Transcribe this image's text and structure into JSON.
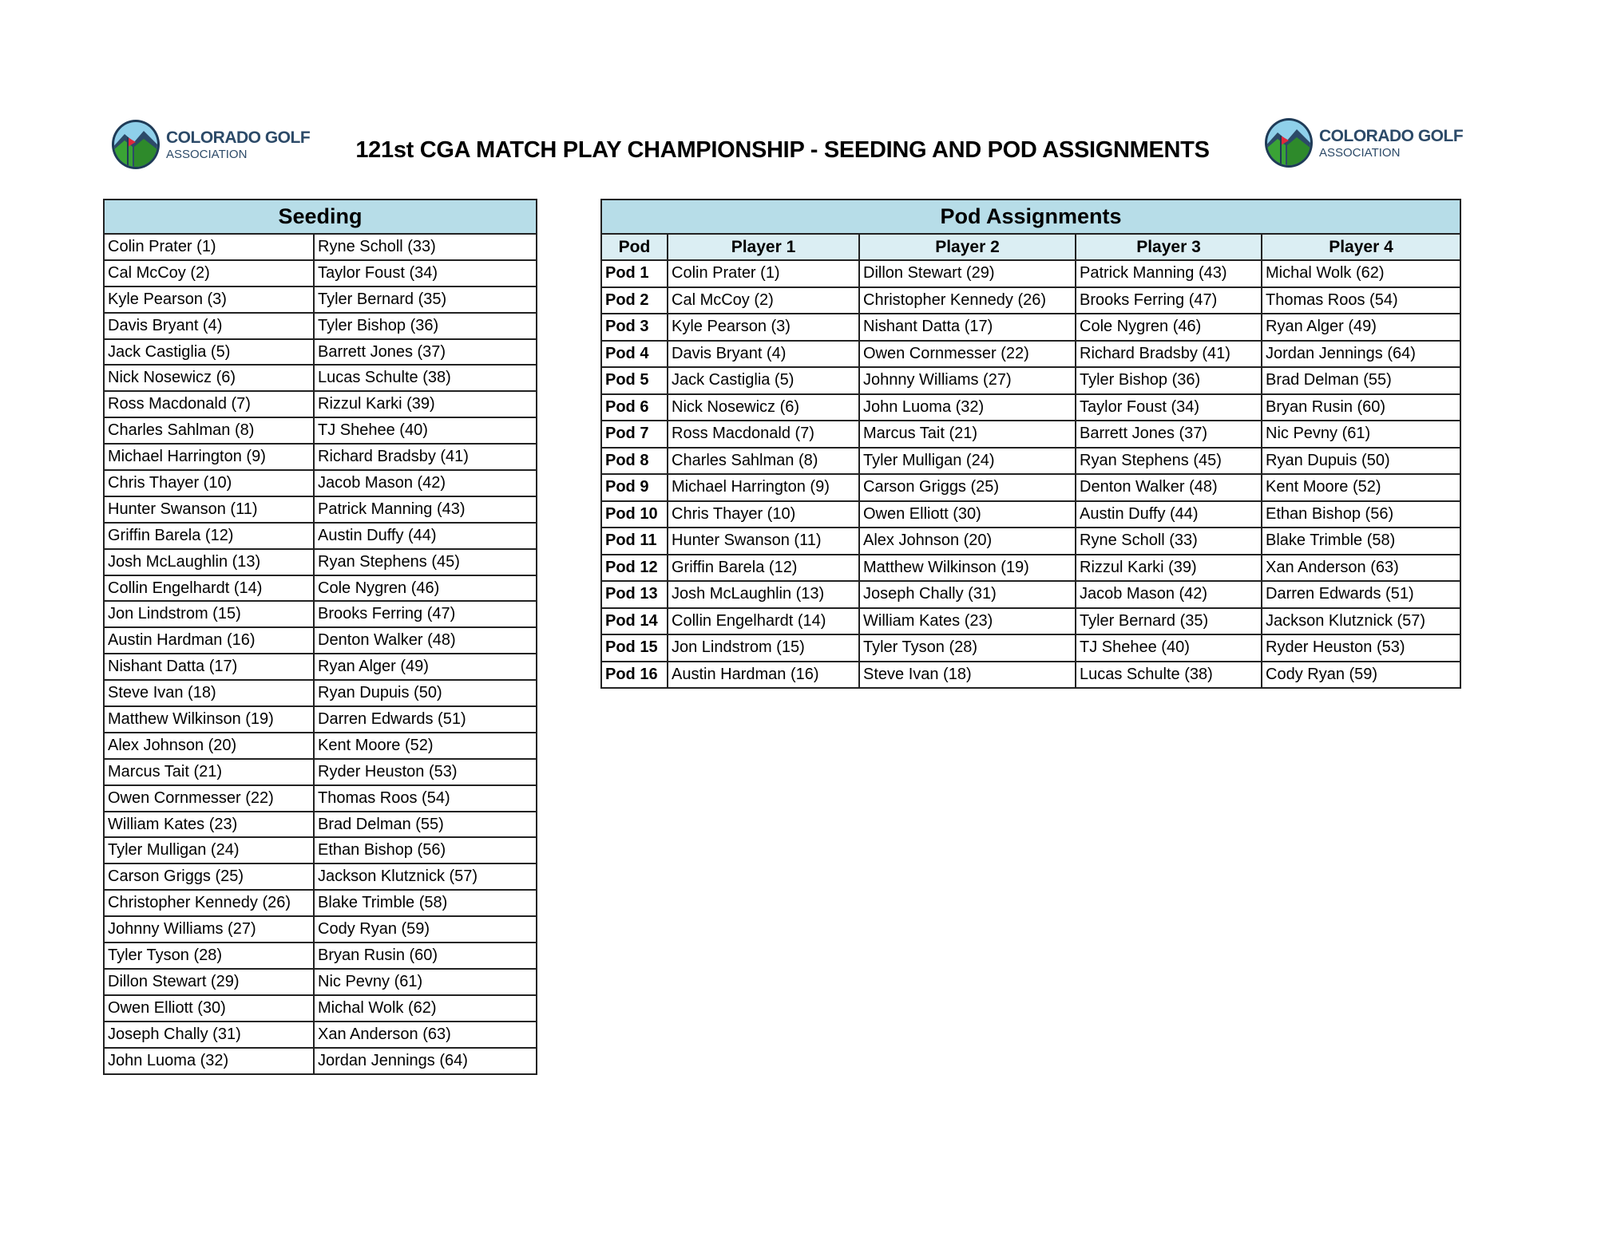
{
  "header": {
    "title": "121st CGA MATCH PLAY CHAMPIONSHIP - SEEDING AND POD ASSIGNMENTS",
    "logo": {
      "line1": "COLORADO GOLF",
      "line2": "ASSOCIATION"
    }
  },
  "colors": {
    "header_bg": "#b7dde8",
    "subheader_bg": "#dbeef3",
    "logo_navy": "#2c4a68",
    "logo_green": "#3aa335",
    "logo_flag": "#e0283c",
    "logo_sky": "#8fd0ea"
  },
  "seeding": {
    "title": "Seeding",
    "rows": [
      [
        "Colin Prater (1)",
        "Ryne Scholl (33)"
      ],
      [
        "Cal McCoy (2)",
        "Taylor Foust (34)"
      ],
      [
        "Kyle Pearson (3)",
        "Tyler Bernard (35)"
      ],
      [
        "Davis Bryant (4)",
        "Tyler Bishop (36)"
      ],
      [
        "Jack Castiglia (5)",
        "Barrett Jones (37)"
      ],
      [
        "Nick Nosewicz (6)",
        "Lucas Schulte (38)"
      ],
      [
        "Ross Macdonald (7)",
        "Rizzul Karki (39)"
      ],
      [
        "Charles Sahlman (8)",
        "TJ Shehee (40)"
      ],
      [
        "Michael Harrington (9)",
        "Richard Bradsby (41)"
      ],
      [
        "Chris Thayer (10)",
        "Jacob Mason (42)"
      ],
      [
        "Hunter Swanson (11)",
        "Patrick Manning (43)"
      ],
      [
        "Griffin Barela (12)",
        "Austin Duffy (44)"
      ],
      [
        "Josh McLaughlin (13)",
        "Ryan Stephens (45)"
      ],
      [
        "Collin Engelhardt (14)",
        "Cole Nygren (46)"
      ],
      [
        "Jon Lindstrom (15)",
        "Brooks Ferring (47)"
      ],
      [
        "Austin Hardman (16)",
        "Denton Walker (48)"
      ],
      [
        "Nishant Datta (17)",
        "Ryan Alger (49)"
      ],
      [
        "Steve Ivan (18)",
        "Ryan Dupuis (50)"
      ],
      [
        "Matthew Wilkinson (19)",
        "Darren Edwards (51)"
      ],
      [
        "Alex Johnson (20)",
        "Kent Moore (52)"
      ],
      [
        "Marcus Tait (21)",
        "Ryder Heuston (53)"
      ],
      [
        "Owen Cornmesser (22)",
        "Thomas Roos (54)"
      ],
      [
        "William Kates (23)",
        "Brad Delman (55)"
      ],
      [
        "Tyler Mulligan (24)",
        "Ethan Bishop (56)"
      ],
      [
        "Carson Griggs (25)",
        "Jackson Klutznick (57)"
      ],
      [
        "Christopher Kennedy (26)",
        "Blake Trimble (58)"
      ],
      [
        "Johnny Williams (27)",
        "Cody Ryan (59)"
      ],
      [
        "Tyler Tyson (28)",
        "Bryan Rusin (60)"
      ],
      [
        "Dillon Stewart (29)",
        "Nic Pevny (61)"
      ],
      [
        "Owen Elliott (30)",
        "Michal Wolk (62)"
      ],
      [
        "Joseph Chally (31)",
        "Xan Anderson (63)"
      ],
      [
        "John Luoma (32)",
        "Jordan Jennings (64)"
      ]
    ]
  },
  "pods": {
    "title": "Pod Assignments",
    "columns": [
      "Pod",
      "Player 1",
      "Player 2",
      "Player 3",
      "Player 4"
    ],
    "rows": [
      [
        "Pod 1",
        "Colin Prater (1)",
        "Dillon Stewart (29)",
        "Patrick Manning (43)",
        "Michal Wolk (62)"
      ],
      [
        "Pod 2",
        "Cal McCoy (2)",
        "Christopher Kennedy (26)",
        "Brooks Ferring (47)",
        "Thomas Roos (54)"
      ],
      [
        "Pod 3",
        "Kyle Pearson (3)",
        "Nishant Datta (17)",
        "Cole Nygren (46)",
        "Ryan Alger (49)"
      ],
      [
        "Pod 4",
        "Davis Bryant (4)",
        "Owen Cornmesser (22)",
        "Richard Bradsby (41)",
        "Jordan Jennings (64)"
      ],
      [
        "Pod 5",
        "Jack Castiglia (5)",
        "Johnny Williams (27)",
        "Tyler Bishop (36)",
        "Brad Delman (55)"
      ],
      [
        "Pod 6",
        "Nick Nosewicz (6)",
        "John Luoma (32)",
        "Taylor Foust (34)",
        "Bryan Rusin (60)"
      ],
      [
        "Pod 7",
        "Ross Macdonald (7)",
        "Marcus Tait (21)",
        "Barrett Jones (37)",
        "Nic Pevny (61)"
      ],
      [
        "Pod 8",
        "Charles Sahlman (8)",
        "Tyler Mulligan (24)",
        "Ryan Stephens (45)",
        "Ryan Dupuis (50)"
      ],
      [
        "Pod 9",
        "Michael Harrington (9)",
        "Carson Griggs (25)",
        "Denton Walker (48)",
        "Kent Moore (52)"
      ],
      [
        "Pod 10",
        "Chris Thayer (10)",
        "Owen Elliott (30)",
        "Austin Duffy (44)",
        "Ethan Bishop (56)"
      ],
      [
        "Pod 11",
        "Hunter Swanson (11)",
        "Alex Johnson (20)",
        "Ryne Scholl (33)",
        "Blake Trimble (58)"
      ],
      [
        "Pod 12",
        "Griffin Barela (12)",
        "Matthew Wilkinson (19)",
        "Rizzul Karki (39)",
        "Xan Anderson (63)"
      ],
      [
        "Pod 13",
        "Josh McLaughlin (13)",
        "Joseph Chally (31)",
        "Jacob Mason (42)",
        "Darren Edwards (51)"
      ],
      [
        "Pod 14",
        "Collin Engelhardt (14)",
        "William Kates (23)",
        "Tyler Bernard (35)",
        "Jackson Klutznick (57)"
      ],
      [
        "Pod 15",
        "Jon Lindstrom (15)",
        "Tyler Tyson (28)",
        "TJ Shehee (40)",
        "Ryder Heuston (53)"
      ],
      [
        "Pod 16",
        "Austin Hardman (16)",
        "Steve Ivan (18)",
        "Lucas Schulte (38)",
        "Cody Ryan (59)"
      ]
    ]
  }
}
